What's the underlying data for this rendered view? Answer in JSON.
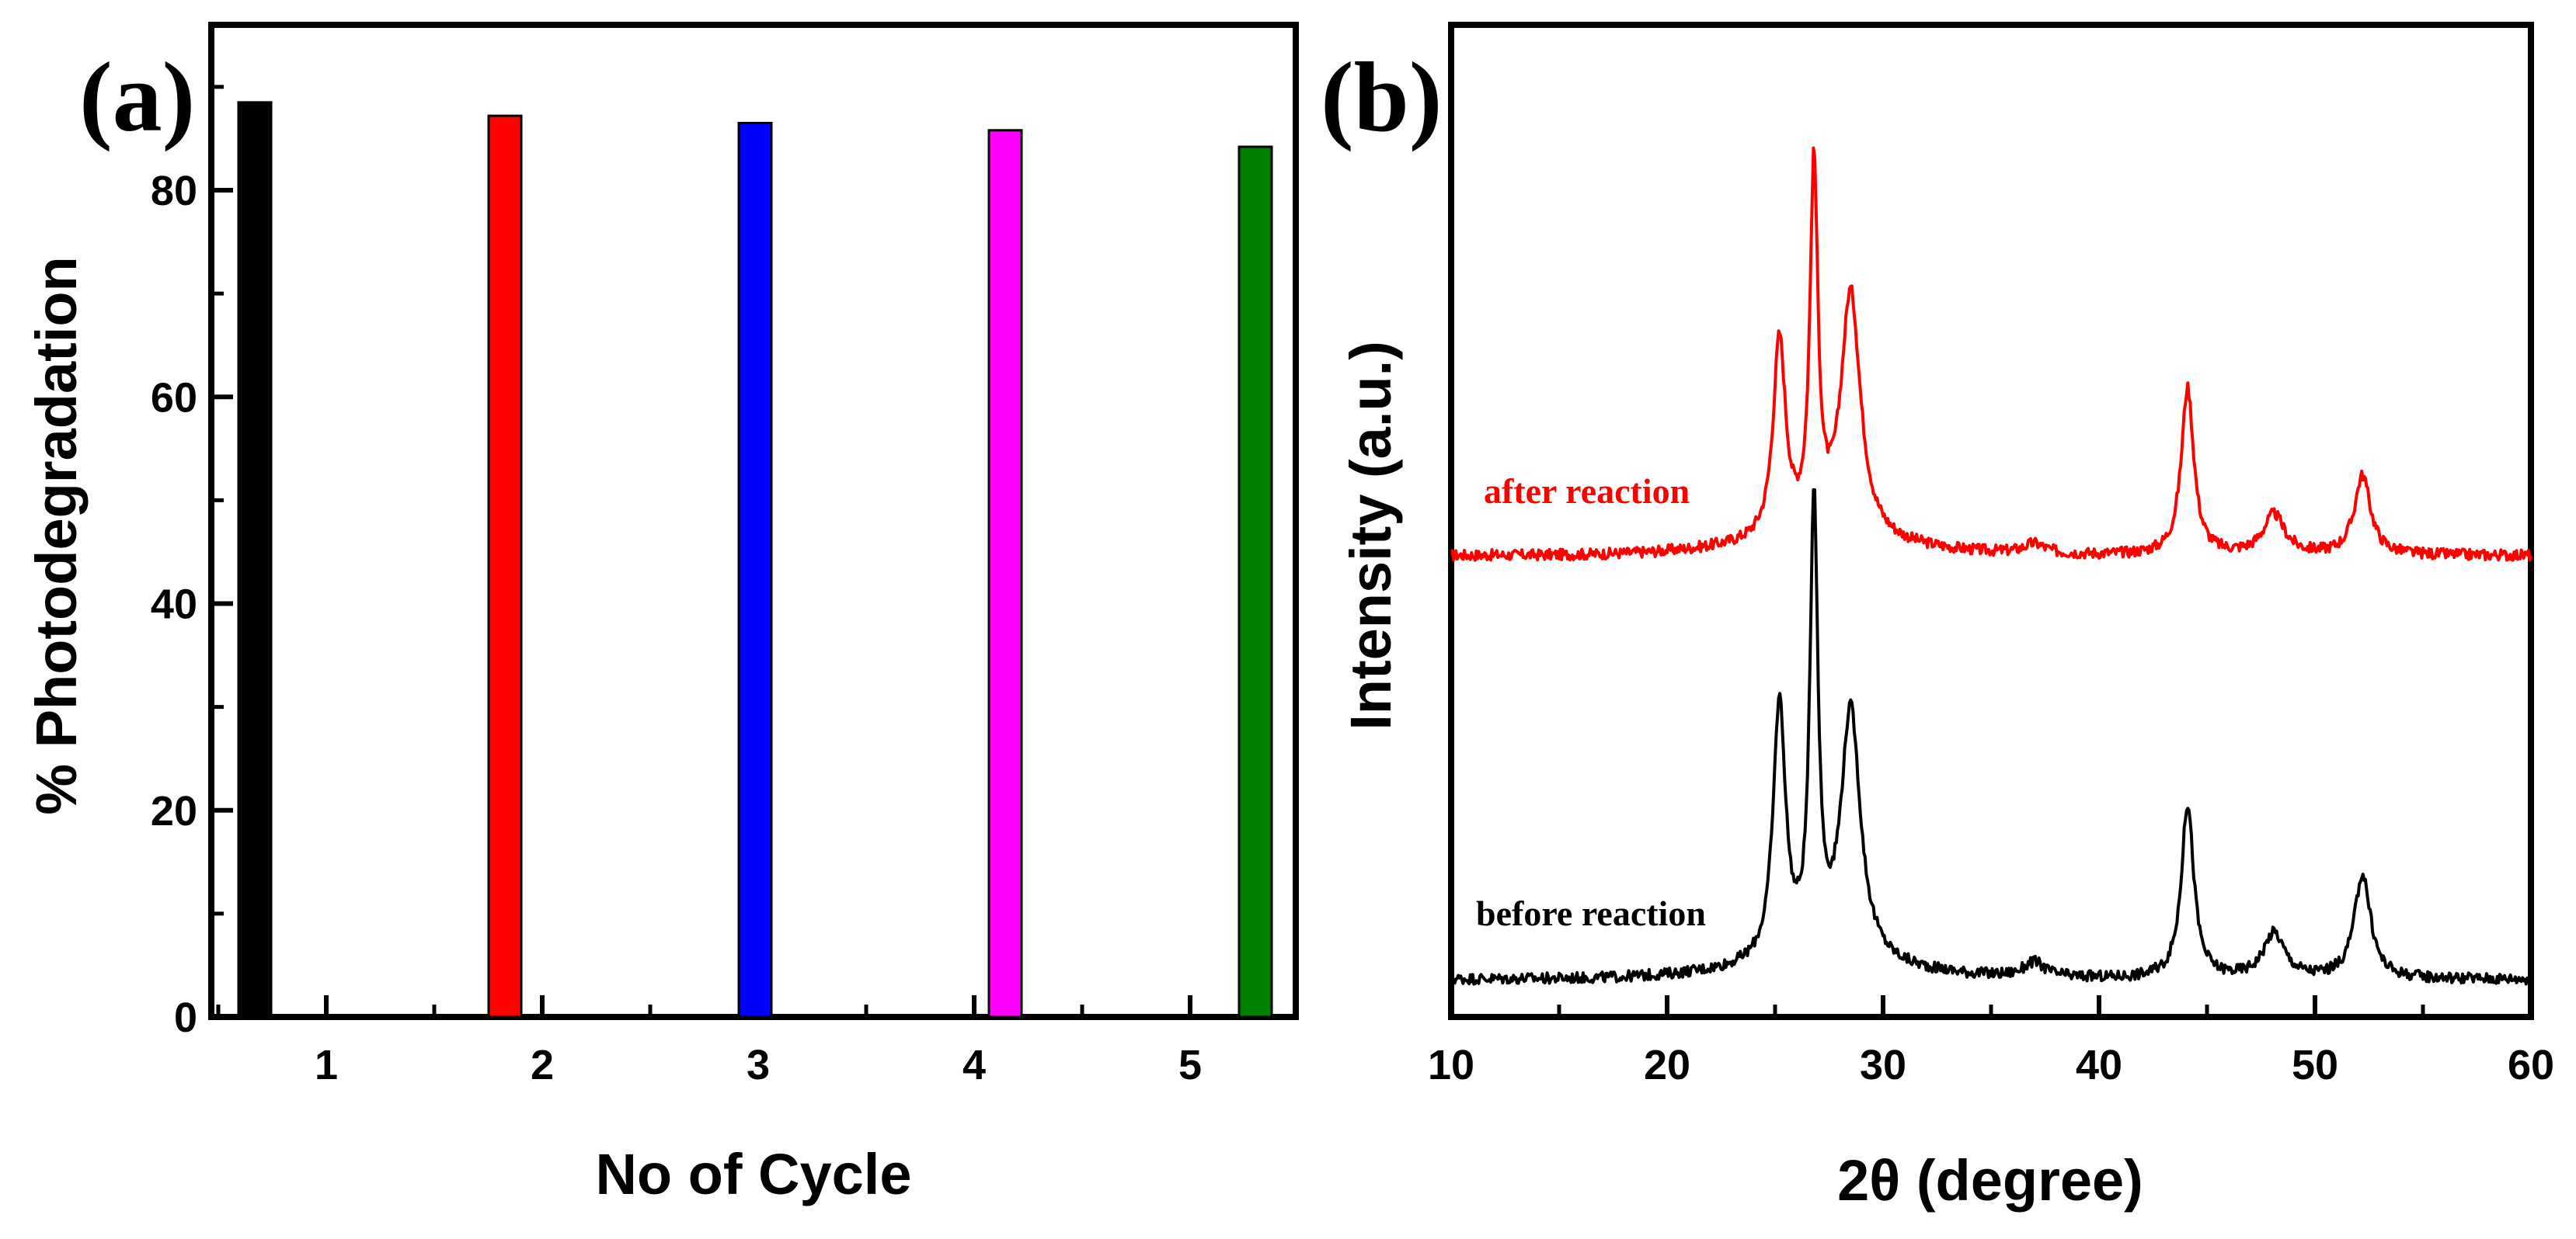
{
  "chart_data": [
    {
      "panel": "(a)",
      "type": "bar",
      "xlabel": "No of Cycle",
      "ylabel": "% Photodegradation",
      "categories": [
        "1",
        "2",
        "3",
        "4",
        "5"
      ],
      "values": [
        88.5,
        87.2,
        86.5,
        85.8,
        84.2
      ],
      "colors": [
        "#000000",
        "#ff0000",
        "#0000ff",
        "#ff00ff",
        "#008000"
      ],
      "ylim": [
        0,
        96
      ],
      "yticks": [
        0,
        20,
        40,
        60,
        80
      ],
      "xticks": [
        "1",
        "2",
        "3",
        "4",
        "5"
      ],
      "grid": false
    },
    {
      "panel": "(b)",
      "type": "line",
      "xlabel": "2θ (degree)",
      "ylabel": "Intensity (a.u.)",
      "xlim": [
        10,
        60
      ],
      "xticks": [
        10,
        20,
        30,
        40,
        50,
        60
      ],
      "ylim": [
        0,
        100
      ],
      "yticks_labeled": false,
      "grid": false,
      "series": [
        {
          "name": "after reaction",
          "color": "#ff0000",
          "baseline": 46.5,
          "peaks": [
            {
              "x": 25.2,
              "y": 20.0
            },
            {
              "x": 26.8,
              "y": 36.5
            },
            {
              "x": 28.5,
              "y": 25.0
            },
            {
              "x": 37.0,
              "y": 1.0
            },
            {
              "x": 44.1,
              "y": 16.8
            },
            {
              "x": 48.1,
              "y": 4.0
            },
            {
              "x": 52.2,
              "y": 8.0
            }
          ]
        },
        {
          "name": "before reaction",
          "color": "#000000",
          "baseline": 3.8,
          "peaks": [
            {
              "x": 25.2,
              "y": 26.0
            },
            {
              "x": 26.8,
              "y": 45.5
            },
            {
              "x": 28.5,
              "y": 25.5
            },
            {
              "x": 37.0,
              "y": 1.5
            },
            {
              "x": 44.1,
              "y": 17.5
            },
            {
              "x": 48.1,
              "y": 4.5
            },
            {
              "x": 52.2,
              "y": 10.5
            }
          ]
        }
      ]
    }
  ]
}
